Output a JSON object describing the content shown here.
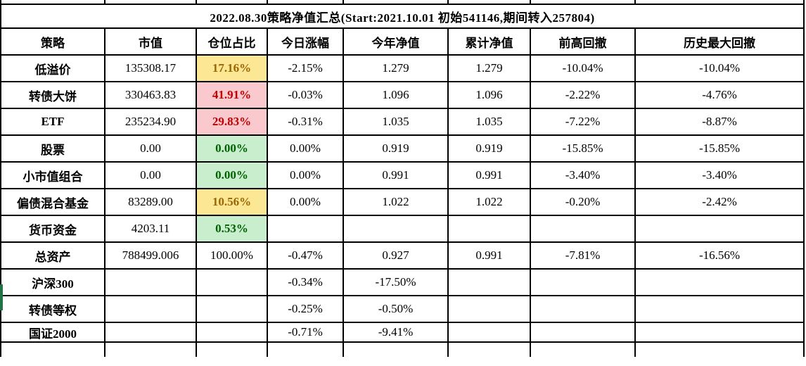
{
  "title": "2022.08.30策略净值汇总(Start:2021.10.01 初始541146,期间转入257804)",
  "table": {
    "columns": [
      {
        "key": "strategy",
        "label": "策略"
      },
      {
        "key": "market_value",
        "label": "市值"
      },
      {
        "key": "position",
        "label": "仓位占比"
      },
      {
        "key": "today_change",
        "label": "今日涨幅"
      },
      {
        "key": "ytd_nav",
        "label": "今年净值"
      },
      {
        "key": "cum_nav",
        "label": "累计净值"
      },
      {
        "key": "prev_high_drawdown",
        "label": "前高回撤"
      },
      {
        "key": "max_drawdown",
        "label": "历史最大回撤"
      }
    ],
    "rows": [
      {
        "strategy": "低溢价",
        "market_value": "135308.17",
        "position": "17.16%",
        "position_style": "neutral",
        "today_change": "-2.15%",
        "ytd_nav": "1.279",
        "cum_nav": "1.279",
        "prev_high_drawdown": "-10.04%",
        "max_drawdown": "-10.04%"
      },
      {
        "strategy": "转债大饼",
        "market_value": "330463.83",
        "position": "41.91%",
        "position_style": "bad",
        "today_change": "-0.03%",
        "ytd_nav": "1.096",
        "cum_nav": "1.096",
        "prev_high_drawdown": "-2.22%",
        "max_drawdown": "-4.76%"
      },
      {
        "strategy": "ETF",
        "market_value": "235234.90",
        "position": "29.83%",
        "position_style": "bad",
        "today_change": "-0.31%",
        "ytd_nav": "1.035",
        "cum_nav": "1.035",
        "prev_high_drawdown": "-7.22%",
        "max_drawdown": "-8.87%"
      },
      {
        "strategy": "股票",
        "market_value": "0.00",
        "position": "0.00%",
        "position_style": "good",
        "today_change": "0.00%",
        "ytd_nav": "0.919",
        "cum_nav": "0.919",
        "prev_high_drawdown": "-15.85%",
        "max_drawdown": "-15.85%"
      },
      {
        "strategy": "小市值组合",
        "market_value": "0.00",
        "position": "0.00%",
        "position_style": "good",
        "today_change": "0.00%",
        "ytd_nav": "0.991",
        "cum_nav": "0.991",
        "prev_high_drawdown": "-3.40%",
        "max_drawdown": "-3.40%"
      },
      {
        "strategy": "偏债混合基金",
        "market_value": "83289.00",
        "position": "10.56%",
        "position_style": "neutral",
        "today_change": "0.00%",
        "ytd_nav": "1.022",
        "cum_nav": "1.022",
        "prev_high_drawdown": "-0.20%",
        "max_drawdown": "-2.42%"
      },
      {
        "strategy": "货币资金",
        "market_value": "4203.11",
        "position": "0.53%",
        "position_style": "good",
        "today_change": "",
        "ytd_nav": "",
        "cum_nav": "",
        "prev_high_drawdown": "",
        "max_drawdown": ""
      },
      {
        "strategy": "总资产",
        "market_value": "788499.006",
        "position": "100.00%",
        "position_style": "none",
        "today_change": "-0.47%",
        "ytd_nav": "0.927",
        "cum_nav": "0.991",
        "prev_high_drawdown": "-7.81%",
        "max_drawdown": "-16.56%"
      },
      {
        "strategy": "沪深300",
        "market_value": "",
        "position": "",
        "position_style": "none",
        "today_change": "-0.34%",
        "ytd_nav": "-17.50%",
        "cum_nav": "",
        "prev_high_drawdown": "",
        "max_drawdown": "",
        "selected": true
      },
      {
        "strategy": "转债等权",
        "market_value": "",
        "position": "",
        "position_style": "none",
        "today_change": "-0.25%",
        "ytd_nav": "-0.50%",
        "cum_nav": "",
        "prev_high_drawdown": "",
        "max_drawdown": ""
      },
      {
        "strategy": "国证2000",
        "market_value": "",
        "position": "",
        "position_style": "none",
        "today_change": "-0.71%",
        "ytd_nav": "-9.41%",
        "cum_nav": "",
        "prev_high_drawdown": "",
        "max_drawdown": ""
      }
    ]
  },
  "colors": {
    "grid_line": "#000000",
    "neutral_bg": "#FCE794",
    "neutral_text": "#9C6500",
    "bad_bg": "#F9C9CE",
    "bad_text": "#C00000",
    "good_bg": "#C9EECD",
    "good_text": "#006100",
    "selection_green": "#217346"
  }
}
